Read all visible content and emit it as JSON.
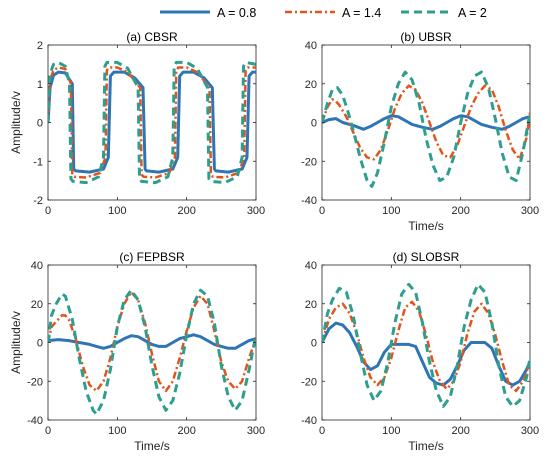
{
  "colors": {
    "A = 0.8": "#2e75b6",
    "A = 1.4": "#e2541a",
    "A = 2": "#2e9e8f"
  },
  "legend": {
    "placement": "top",
    "entries": [
      {
        "label": "A = 0.8",
        "style": "solid"
      },
      {
        "label": "A = 1.4",
        "style": "dash-dot"
      },
      {
        "label": "A = 2",
        "style": "dashed"
      }
    ]
  },
  "chart_data": [
    {
      "type": "line",
      "title": "(a) CBSR",
      "xlabel": "",
      "ylabel": "Amplitude/v",
      "xlim": [
        0,
        300
      ],
      "ylim": [
        -2,
        2
      ],
      "xticks": [
        0,
        100,
        200,
        300
      ],
      "yticks": [
        -2,
        -1,
        0,
        1,
        2
      ],
      "grid": false,
      "series": [
        {
          "name": "A = 0.8",
          "x": [
            0,
            3,
            8,
            15,
            25,
            35,
            37,
            40,
            60,
            80,
            87,
            90,
            95,
            110,
            125,
            137,
            140,
            142,
            160,
            180,
            187,
            190,
            195,
            210,
            225,
            237,
            240,
            242,
            260,
            280,
            287,
            290,
            295,
            300
          ],
          "y": [
            0,
            0.9,
            1.22,
            1.3,
            1.28,
            1.0,
            -1.2,
            -1.25,
            -1.28,
            -1.2,
            -0.9,
            1.2,
            1.3,
            1.3,
            1.15,
            0.9,
            -1.2,
            -1.25,
            -1.28,
            -1.2,
            -0.9,
            1.2,
            1.3,
            1.3,
            1.15,
            0.9,
            -1.2,
            -1.25,
            -1.28,
            -1.2,
            -0.9,
            1.2,
            1.3,
            1.3
          ]
        },
        {
          "name": "A = 1.4",
          "x": [
            0,
            3,
            8,
            15,
            25,
            33,
            35,
            38,
            55,
            75,
            83,
            85,
            88,
            100,
            115,
            133,
            135,
            138,
            155,
            175,
            183,
            185,
            188,
            200,
            215,
            233,
            235,
            238,
            255,
            275,
            283,
            285,
            288,
            300
          ],
          "y": [
            0,
            1.1,
            1.35,
            1.42,
            1.38,
            1.0,
            -1.35,
            -1.4,
            -1.42,
            -1.3,
            -0.9,
            1.35,
            1.42,
            1.42,
            1.3,
            0.9,
            -1.35,
            -1.4,
            -1.42,
            -1.3,
            -0.9,
            1.35,
            1.42,
            1.42,
            1.3,
            0.9,
            -1.35,
            -1.4,
            -1.42,
            -1.3,
            -0.9,
            1.35,
            1.42,
            1.42
          ]
        },
        {
          "name": "A = 2",
          "x": [
            0,
            3,
            8,
            15,
            25,
            31,
            33,
            36,
            55,
            73,
            80,
            82,
            85,
            100,
            115,
            130,
            132,
            135,
            155,
            173,
            180,
            182,
            185,
            200,
            215,
            230,
            232,
            235,
            255,
            273,
            280,
            282,
            285,
            300
          ],
          "y": [
            0,
            1.25,
            1.5,
            1.55,
            1.45,
            1.0,
            -1.45,
            -1.52,
            -1.55,
            -1.4,
            -0.9,
            1.45,
            1.55,
            1.55,
            1.4,
            0.9,
            -1.45,
            -1.52,
            -1.55,
            -1.4,
            -0.9,
            1.45,
            1.55,
            1.55,
            1.4,
            0.9,
            -1.45,
            -1.52,
            -1.55,
            -1.4,
            -0.9,
            1.45,
            1.55,
            1.5
          ]
        }
      ]
    },
    {
      "type": "line",
      "title": "(b) UBSR",
      "xlabel": "Time/s",
      "ylabel": "",
      "xlim": [
        0,
        300
      ],
      "ylim": [
        -40,
        40
      ],
      "xticks": [
        0,
        100,
        200,
        300
      ],
      "yticks": [
        -40,
        -20,
        0,
        20,
        40
      ],
      "grid": false,
      "series": [
        {
          "name": "A = 0.8",
          "x": [
            0,
            10,
            20,
            30,
            45,
            60,
            70,
            80,
            90,
            100,
            110,
            120,
            130,
            145,
            160,
            170,
            180,
            190,
            200,
            210,
            220,
            230,
            245,
            260,
            270,
            280,
            290,
            300
          ],
          "y": [
            0,
            1.5,
            2,
            0,
            -1.5,
            -3.5,
            -2,
            0,
            2,
            3.5,
            3,
            1,
            -1,
            -2.5,
            -3.5,
            -2,
            0,
            2,
            3.5,
            3,
            1,
            -1,
            -2.5,
            -3.5,
            -2,
            0,
            2,
            3
          ]
        },
        {
          "name": "A = 1.4",
          "x": [
            0,
            8,
            15,
            20,
            25,
            35,
            45,
            55,
            65,
            75,
            85,
            95,
            105,
            115,
            125,
            135,
            145,
            155,
            165,
            175,
            185,
            195,
            205,
            215,
            225,
            235,
            245,
            255,
            265,
            275,
            285,
            295,
            300
          ],
          "y": [
            0,
            8,
            12,
            11,
            9,
            3,
            -5,
            -13,
            -18,
            -19,
            -14,
            -4,
            7,
            15,
            19,
            17,
            10,
            0,
            -10,
            -17,
            -18,
            -12,
            -2,
            8,
            15,
            19,
            17,
            8,
            -4,
            -14,
            -19,
            -8,
            5
          ]
        },
        {
          "name": "A = 2",
          "x": [
            0,
            8,
            15,
            22,
            30,
            38,
            45,
            55,
            65,
            72,
            80,
            90,
            100,
            110,
            120,
            130,
            140,
            150,
            160,
            170,
            180,
            190,
            200,
            210,
            220,
            230,
            240,
            250,
            260,
            270,
            280,
            290,
            300
          ],
          "y": [
            0,
            10,
            17,
            18,
            14,
            5,
            -4,
            -18,
            -30,
            -33,
            -26,
            -10,
            8,
            20,
            26,
            22,
            10,
            -8,
            -22,
            -30,
            -28,
            -18,
            0,
            15,
            24,
            26,
            18,
            2,
            -16,
            -28,
            -30,
            -15,
            5
          ]
        }
      ]
    },
    {
      "type": "line",
      "title": "(c) FEPBSR",
      "xlabel": "Time/s",
      "ylabel": "Amplitude/v",
      "xlim": [
        0,
        300
      ],
      "ylim": [
        -40,
        40
      ],
      "xticks": [
        0,
        100,
        200,
        300
      ],
      "yticks": [
        -40,
        -20,
        0,
        20,
        40
      ],
      "grid": false,
      "series": [
        {
          "name": "A = 0.8",
          "x": [
            0,
            15,
            30,
            45,
            60,
            70,
            80,
            90,
            100,
            110,
            120,
            130,
            140,
            150,
            160,
            170,
            180,
            190,
            200,
            210,
            220,
            230,
            240,
            250,
            260,
            270,
            280,
            290,
            300
          ],
          "y": [
            1,
            1.5,
            1,
            0,
            -1,
            -2,
            -3,
            -2,
            0,
            2,
            3.5,
            3,
            1,
            -1,
            -2,
            -2,
            0,
            2,
            3,
            4,
            3,
            1,
            -1,
            -2,
            -3,
            -3,
            -1,
            1,
            2
          ]
        },
        {
          "name": "A = 1.4",
          "x": [
            0,
            5,
            10,
            20,
            25,
            30,
            40,
            50,
            60,
            70,
            80,
            90,
            100,
            110,
            120,
            130,
            140,
            150,
            160,
            170,
            180,
            190,
            200,
            210,
            220,
            230,
            240,
            250,
            260,
            270,
            280,
            290,
            300
          ],
          "y": [
            0,
            8,
            10,
            14,
            14,
            12,
            2,
            -12,
            -22,
            -25,
            -20,
            -8,
            8,
            20,
            26,
            22,
            10,
            -6,
            -20,
            -25,
            -20,
            -8,
            6,
            18,
            24,
            20,
            6,
            -10,
            -20,
            -24,
            -20,
            -8,
            2
          ]
        },
        {
          "name": "A = 2",
          "x": [
            0,
            5,
            12,
            20,
            25,
            35,
            45,
            55,
            65,
            70,
            80,
            90,
            100,
            110,
            120,
            130,
            140,
            150,
            160,
            170,
            180,
            190,
            200,
            210,
            220,
            230,
            240,
            250,
            260,
            270,
            280,
            290,
            300
          ],
          "y": [
            0,
            14,
            20,
            25,
            24,
            12,
            -8,
            -25,
            -35,
            -37,
            -30,
            -14,
            8,
            22,
            27,
            22,
            8,
            -12,
            -28,
            -35,
            -30,
            -16,
            4,
            20,
            27,
            24,
            10,
            -12,
            -28,
            -35,
            -30,
            -14,
            4
          ]
        }
      ]
    },
    {
      "type": "line",
      "title": "(d) SLOBSR",
      "xlabel": "Time/s",
      "ylabel": "",
      "xlim": [
        0,
        300
      ],
      "ylim": [
        -40,
        40
      ],
      "xticks": [
        0,
        100,
        200,
        300
      ],
      "yticks": [
        -40,
        -20,
        0,
        20,
        40
      ],
      "grid": false,
      "series": [
        {
          "name": "A = 0.8",
          "x": [
            0,
            10,
            20,
            30,
            40,
            50,
            60,
            70,
            80,
            90,
            100,
            110,
            125,
            135,
            145,
            155,
            165,
            175,
            185,
            195,
            205,
            215,
            225,
            235,
            245,
            255,
            265,
            275,
            285,
            295,
            300
          ],
          "y": [
            0,
            7,
            10,
            9,
            5,
            -2,
            -10,
            -14,
            -12,
            -5,
            -1,
            -1,
            -1,
            -2,
            -10,
            -18,
            -21,
            -22,
            -19,
            -12,
            -4,
            0,
            0,
            0,
            -3,
            -12,
            -20,
            -22,
            -20,
            -14,
            -10
          ]
        },
        {
          "name": "A = 1.4",
          "x": [
            0,
            10,
            20,
            30,
            40,
            50,
            60,
            70,
            80,
            90,
            100,
            110,
            120,
            130,
            140,
            150,
            160,
            170,
            180,
            190,
            200,
            210,
            220,
            230,
            240,
            250,
            260,
            270,
            280,
            290,
            300
          ],
          "y": [
            0,
            12,
            18,
            20,
            15,
            5,
            -8,
            -18,
            -22,
            -18,
            -8,
            6,
            18,
            21,
            16,
            4,
            -10,
            -20,
            -24,
            -20,
            -10,
            5,
            16,
            20,
            15,
            4,
            -10,
            -22,
            -25,
            -20,
            -10
          ]
        },
        {
          "name": "A = 2",
          "x": [
            0,
            8,
            15,
            25,
            35,
            45,
            55,
            65,
            75,
            85,
            95,
            105,
            115,
            125,
            135,
            145,
            155,
            165,
            175,
            185,
            195,
            205,
            215,
            225,
            235,
            245,
            255,
            265,
            275,
            285,
            295,
            300
          ],
          "y": [
            0,
            15,
            22,
            28,
            26,
            14,
            -5,
            -22,
            -30,
            -25,
            -10,
            10,
            25,
            30,
            26,
            10,
            -10,
            -25,
            -33,
            -28,
            -12,
            8,
            22,
            30,
            26,
            10,
            -12,
            -28,
            -33,
            -30,
            -18,
            -8
          ]
        }
      ]
    }
  ]
}
